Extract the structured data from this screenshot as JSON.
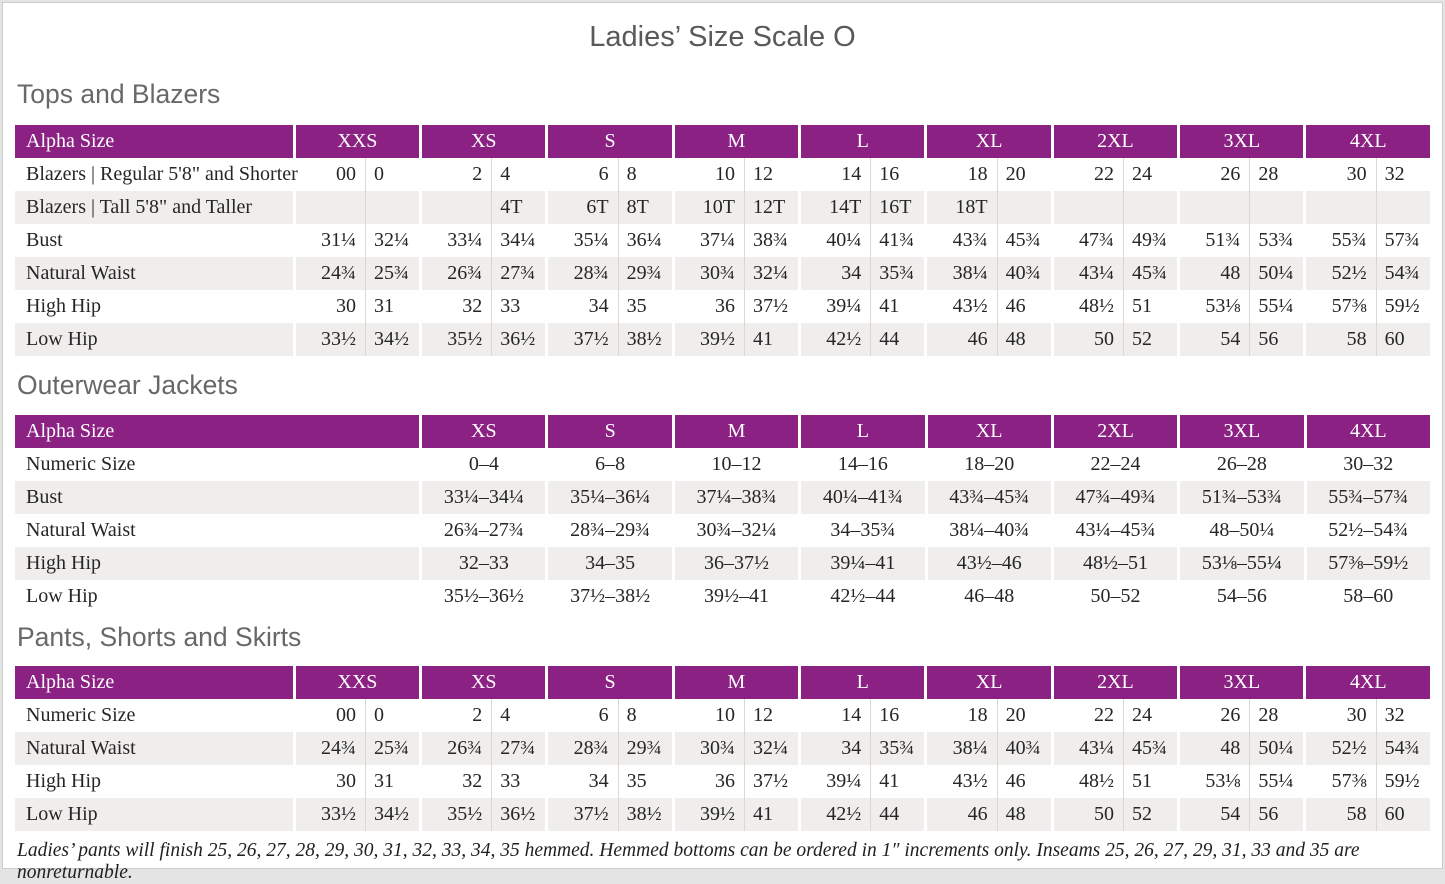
{
  "page_title": "Ladies’ Size Scale O",
  "colors": {
    "header_bg": "#8a2183",
    "header_text": "#ffffff",
    "row_alt_bg": "#f0eeec",
    "body_text": "#262626",
    "heading_text": "#686868",
    "divider": "#dbd8d4"
  },
  "tables": [
    {
      "section": "Tops and Blazers",
      "type": "split",
      "header_label": "Alpha Size",
      "sizes": [
        "XXS",
        "XS",
        "S",
        "M",
        "L",
        "XL",
        "2XL",
        "3XL",
        "4XL"
      ],
      "rows": [
        {
          "label": "Blazers  |  Regular 5'8\" and Shorter",
          "values": [
            "00",
            "0",
            "2",
            "4",
            "6",
            "8",
            "10",
            "12",
            "14",
            "16",
            "18",
            "20",
            "22",
            "24",
            "26",
            "28",
            "30",
            "32"
          ]
        },
        {
          "label": "Blazers  |  Tall 5'8\" and Taller",
          "values": [
            "",
            "",
            "",
            "4T",
            "6T",
            "8T",
            "10T",
            "12T",
            "14T",
            "16T",
            "18T",
            "",
            "",
            "",
            "",
            "",
            "",
            ""
          ]
        },
        {
          "label": "Bust",
          "values": [
            "31¼",
            "32¼",
            "33¼",
            "34¼",
            "35¼",
            "36¼",
            "37¼",
            "38¾",
            "40¼",
            "41¾",
            "43¾",
            "45¾",
            "47¾",
            "49¾",
            "51¾",
            "53¾",
            "55¾",
            "57¾"
          ]
        },
        {
          "label": "Natural Waist",
          "values": [
            "24¾",
            "25¾",
            "26¾",
            "27¾",
            "28¾",
            "29¾",
            "30¾",
            "32¼",
            "34",
            "35¾",
            "38¼",
            "40¾",
            "43¼",
            "45¾",
            "48",
            "50¼",
            "52½",
            "54¾"
          ]
        },
        {
          "label": "High Hip",
          "values": [
            "30",
            "31",
            "32",
            "33",
            "34",
            "35",
            "36",
            "37½",
            "39¼",
            "41",
            "43½",
            "46",
            "48½",
            "51",
            "53⅛",
            "55¼",
            "57⅜",
            "59½"
          ]
        },
        {
          "label": "Low Hip",
          "values": [
            "33½",
            "34½",
            "35½",
            "36½",
            "37½",
            "38½",
            "39½",
            "41",
            "42½",
            "44",
            "46",
            "48",
            "50",
            "52",
            "54",
            "56",
            "58",
            "60"
          ]
        }
      ]
    },
    {
      "section": "Outerwear Jackets",
      "type": "range",
      "header_label": "Alpha Size",
      "sizes": [
        "XS",
        "S",
        "M",
        "L",
        "XL",
        "2XL",
        "3XL",
        "4XL"
      ],
      "rows": [
        {
          "label": "Numeric Size",
          "values": [
            "0–4",
            "6–8",
            "10–12",
            "14–16",
            "18–20",
            "22–24",
            "26–28",
            "30–32"
          ]
        },
        {
          "label": "Bust",
          "values": [
            "33¼–34¼",
            "35¼–36¼",
            "37¼–38¾",
            "40¼–41¾",
            "43¾–45¾",
            "47¾–49¾",
            "51¾–53¾",
            "55¾–57¾"
          ]
        },
        {
          "label": "Natural Waist",
          "values": [
            "26¾–27¾",
            "28¾–29¾",
            "30¾–32¼",
            "34–35¾",
            "38¼–40¾",
            "43¼–45¾",
            "48–50¼",
            "52½–54¾"
          ]
        },
        {
          "label": "High Hip",
          "values": [
            "32–33",
            "34–35",
            "36–37½",
            "39¼–41",
            "43½–46",
            "48½–51",
            "53⅛–55¼",
            "57⅜–59½"
          ]
        },
        {
          "label": "Low Hip",
          "values": [
            "35½–36½",
            "37½–38½",
            "39½–41",
            "42½–44",
            "46–48",
            "50–52",
            "54–56",
            "58–60"
          ]
        }
      ]
    },
    {
      "section": "Pants, Shorts and Skirts",
      "type": "split",
      "header_label": "Alpha Size",
      "sizes": [
        "XXS",
        "XS",
        "S",
        "M",
        "L",
        "XL",
        "2XL",
        "3XL",
        "4XL"
      ],
      "rows": [
        {
          "label": "Numeric Size",
          "values": [
            "00",
            "0",
            "2",
            "4",
            "6",
            "8",
            "10",
            "12",
            "14",
            "16",
            "18",
            "20",
            "22",
            "24",
            "26",
            "28",
            "30",
            "32"
          ]
        },
        {
          "label": "Natural Waist",
          "values": [
            "24¾",
            "25¾",
            "26¾",
            "27¾",
            "28¾",
            "29¾",
            "30¾",
            "32¼",
            "34",
            "35¾",
            "38¼",
            "40¾",
            "43¼",
            "45¾",
            "48",
            "50¼",
            "52½",
            "54¾"
          ]
        },
        {
          "label": "High Hip",
          "values": [
            "30",
            "31",
            "32",
            "33",
            "34",
            "35",
            "36",
            "37½",
            "39¼",
            "41",
            "43½",
            "46",
            "48½",
            "51",
            "53⅛",
            "55¼",
            "57⅜",
            "59½"
          ]
        },
        {
          "label": "Low Hip",
          "values": [
            "33½",
            "34½",
            "35½",
            "36½",
            "37½",
            "38½",
            "39½",
            "41",
            "42½",
            "44",
            "46",
            "48",
            "50",
            "52",
            "54",
            "56",
            "58",
            "60"
          ]
        }
      ]
    }
  ],
  "footnote": "Ladies’ pants will finish 25, 26, 27, 28, 29, 30, 31, 32, 33, 34, 35 hemmed. Hemmed bottoms can be ordered in 1″ increments only. Inseams 25, 26, 27, 29, 31, 33 and 35 are nonreturnable."
}
